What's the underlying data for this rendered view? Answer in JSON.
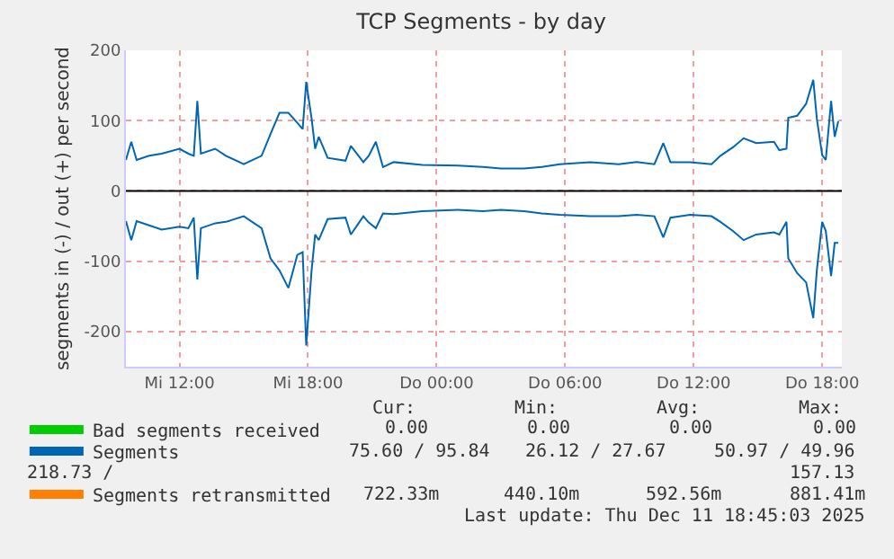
{
  "chart_data": {
    "type": "line",
    "title": "TCP Segments - by day",
    "ylabel": "segments in (-) / out (+) per second",
    "x": [
      "2025-12-10T09:30",
      "2025-12-10T09:45",
      "2025-12-10T10:00",
      "2025-12-10T10:35",
      "2025-12-10T11:10",
      "2025-12-10T12:00",
      "2025-12-10T12:25",
      "2025-12-10T12:40",
      "2025-12-10T12:50",
      "2025-12-10T13:00",
      "2025-12-10T13:40",
      "2025-12-10T14:10",
      "2025-12-10T15:00",
      "2025-12-10T15:50",
      "2025-12-10T16:15",
      "2025-12-10T16:40",
      "2025-12-10T17:05",
      "2025-12-10T17:30",
      "2025-12-10T17:45",
      "2025-12-10T17:55",
      "2025-12-10T18:10",
      "2025-12-10T18:20",
      "2025-12-10T18:30",
      "2025-12-10T18:55",
      "2025-12-10T19:45",
      "2025-12-10T20:00",
      "2025-12-10T20:35",
      "2025-12-10T20:50",
      "2025-12-10T21:10",
      "2025-12-10T21:30",
      "2025-12-10T22:00",
      "2025-12-10T23:20",
      "2025-12-11T01:00",
      "2025-12-11T02:10",
      "2025-12-11T03:00",
      "2025-12-11T04:05",
      "2025-12-11T04:55",
      "2025-12-11T05:45",
      "2025-12-11T07:10",
      "2025-12-11T08:30",
      "2025-12-11T09:20",
      "2025-12-11T10:10",
      "2025-12-11T10:35",
      "2025-12-11T10:55",
      "2025-12-11T11:50",
      "2025-12-11T12:50",
      "2025-12-11T13:15",
      "2025-12-11T13:50",
      "2025-12-11T14:20",
      "2025-12-11T14:55",
      "2025-12-11T15:45",
      "2025-12-11T16:00",
      "2025-12-11T16:20",
      "2025-12-11T16:25",
      "2025-12-11T16:50",
      "2025-12-11T17:15",
      "2025-12-11T17:35",
      "2025-12-11T17:45",
      "2025-12-11T18:00",
      "2025-12-11T18:10",
      "2025-12-11T18:25",
      "2025-12-11T18:35",
      "2025-12-11T18:45"
    ],
    "series": [
      {
        "name": "Bad segments received",
        "color": "#00cc00",
        "values": [
          null,
          null,
          null,
          null,
          null,
          null,
          null,
          null,
          null,
          null,
          null,
          null,
          null,
          null,
          null,
          null,
          null,
          null,
          null,
          null,
          null,
          null,
          null,
          null,
          null,
          null,
          null,
          null,
          null,
          null,
          null,
          null,
          null,
          null,
          null,
          null,
          null,
          null,
          null,
          null,
          null,
          null,
          null,
          null,
          null,
          null,
          null,
          null,
          null,
          null,
          null,
          null,
          null,
          null,
          null,
          null,
          null,
          null,
          null,
          null,
          null,
          null,
          null
        ]
      },
      {
        "name": "Segments",
        "color": "#0066b3",
        "values": [
          44,
          70,
          44,
          50,
          53,
          60,
          53,
          50,
          128,
          53,
          60,
          50,
          38,
          50,
          81,
          111,
          111,
          97,
          88,
          155,
          103,
          60,
          77,
          47,
          43,
          64,
          41,
          50,
          70,
          34,
          41,
          37,
          36,
          34,
          32,
          32,
          34,
          38,
          41,
          38,
          41,
          38,
          68,
          41,
          41,
          38,
          50,
          62,
          75,
          68,
          70,
          58,
          60,
          104,
          107,
          124,
          158,
          103,
          51,
          44,
          128,
          77,
          99
        ]
      },
      {
        "color": "#0066b3",
        "values": [
          -43,
          -70,
          -43,
          -49,
          -55,
          -51,
          -53,
          -38,
          -126,
          -53,
          -46,
          -44,
          -36,
          -53,
          -96,
          -113,
          -138,
          -91,
          -87,
          -220,
          -113,
          -62,
          -70,
          -40,
          -38,
          -62,
          -36,
          -45,
          -53,
          -32,
          -33,
          -29,
          -27,
          -29,
          -27,
          -29,
          -32,
          -34,
          -36,
          -36,
          -34,
          -36,
          -66,
          -38,
          -34,
          -36,
          -44,
          -57,
          -70,
          -62,
          -59,
          -62,
          -44,
          -96,
          -117,
          -130,
          -181,
          -113,
          -44,
          -57,
          -121,
          -74,
          -74
        ]
      },
      {
        "name": "Segments retransmitted",
        "color": "#ff7f00",
        "values": [
          null,
          null,
          null,
          null,
          null,
          null,
          null,
          null,
          null,
          null,
          null,
          null,
          null,
          null,
          null,
          null,
          null,
          null,
          null,
          null,
          null,
          null,
          null,
          null,
          null,
          null,
          null,
          null,
          null,
          null,
          null,
          null,
          null,
          null,
          null,
          null,
          null,
          null,
          null,
          null,
          null,
          null,
          null,
          null,
          null,
          null,
          null,
          null,
          null,
          null,
          null,
          null,
          null,
          null,
          null,
          null,
          null,
          null,
          null,
          null,
          null,
          null,
          null
        ]
      }
    ],
    "xlim": [
      "2025-12-10T09:30",
      "2025-12-11T18:55"
    ],
    "xticks": [
      {
        "value": "2025-12-10T12:00",
        "label": "Mi 12:00"
      },
      {
        "value": "2025-12-10T18:00",
        "label": "Mi 18:00"
      },
      {
        "value": "2025-12-11T00:00",
        "label": "Do 00:00"
      },
      {
        "value": "2025-12-11T06:00",
        "label": "Do 06:00"
      },
      {
        "value": "2025-12-11T12:00",
        "label": "Do 12:00"
      },
      {
        "value": "2025-12-11T18:00",
        "label": "Do 18:00"
      }
    ],
    "ylim": [
      -250,
      200
    ],
    "yticks": [
      -200,
      -100,
      0,
      100,
      200
    ],
    "ref_lines": [
      {
        "axis": "y",
        "value": 0,
        "color": "#000000"
      }
    ],
    "grid": true,
    "legend": "bottom left",
    "line_style": "solid",
    "marker": "none",
    "annotations": [
      "Cur:",
      "Min:",
      "Avg:",
      "Max:",
      "0.00",
      "0.00",
      "0.00",
      "0.00",
      "75.60 / 95.84",
      "26.12 / 27.67",
      "50.97 / 49.96",
      "218.73 /",
      "157.13",
      "722.33m",
      "440.10m",
      "592.56m",
      "881.41m",
      "Last update: Thu Dec 11 18:45:03 2025"
    ]
  }
}
